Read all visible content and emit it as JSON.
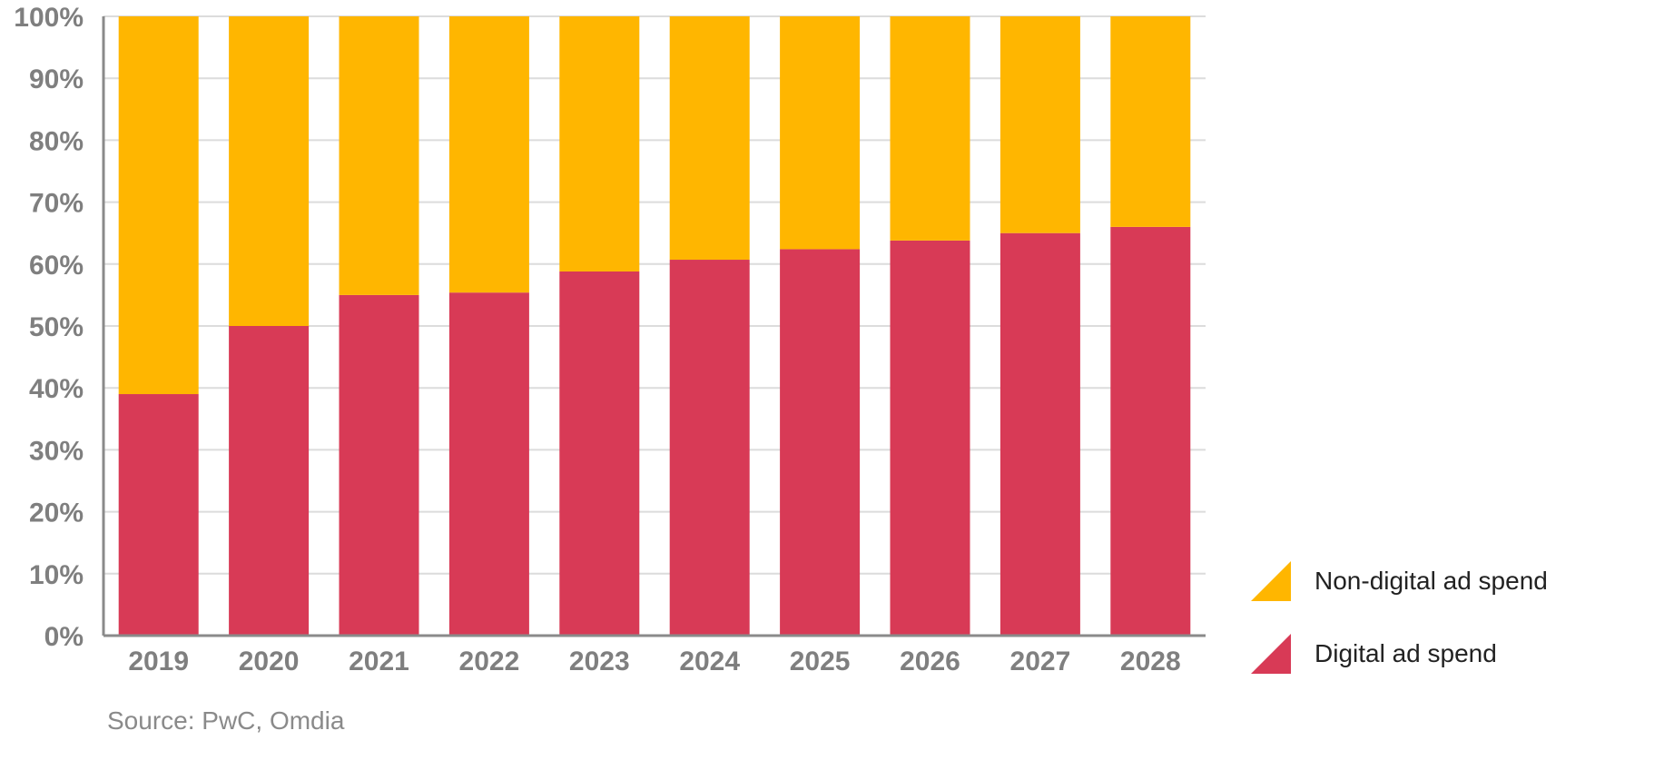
{
  "chart_data": {
    "type": "bar",
    "stacked": true,
    "categories": [
      "2019",
      "2020",
      "2021",
      "2022",
      "2023",
      "2024",
      "2025",
      "2026",
      "2027",
      "2028"
    ],
    "series": [
      {
        "name": "Digital ad spend",
        "color": "#d83a56",
        "values": [
          39,
          50,
          55,
          55.4,
          58.8,
          60.7,
          62.4,
          63.8,
          65,
          66
        ]
      },
      {
        "name": "Non-digital ad spend",
        "color": "#ffb600",
        "values": [
          61,
          50,
          45,
          44.6,
          41.2,
          39.3,
          37.6,
          36.2,
          35,
          34
        ]
      }
    ],
    "ylim": [
      0,
      100
    ],
    "y_ticks": [
      "0%",
      "10%",
      "20%",
      "30%",
      "40%",
      "50%",
      "60%",
      "70%",
      "80%",
      "90%",
      "100%"
    ],
    "grid": true,
    "legend_placement": "bottom-right"
  },
  "legend": {
    "items": [
      {
        "label": "Non-digital ad spend",
        "color": "#ffb600",
        "icon": "triangle-swatch-icon"
      },
      {
        "label": "Digital ad spend",
        "color": "#d83a56",
        "icon": "triangle-swatch-icon"
      }
    ]
  },
  "source": "Source: PwC, Omdia"
}
